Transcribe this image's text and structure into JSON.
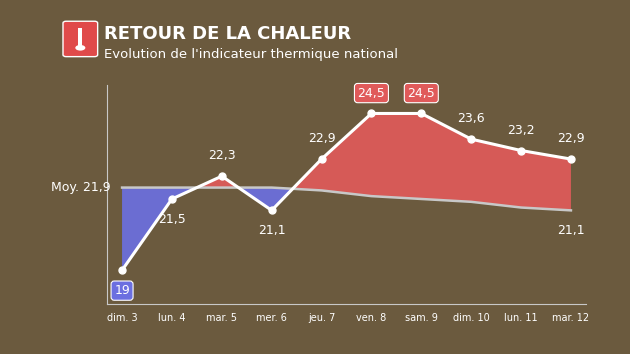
{
  "chart_data": {
    "type": "line",
    "title": "RETOUR DE LA CHALEUR",
    "subtitle": "Evolution de l'indicateur thermique national",
    "categories": [
      "dim. 3",
      "lun. 4",
      "mar. 5",
      "mer. 6",
      "jeu. 7",
      "ven. 8",
      "sam. 9",
      "dim. 10",
      "lun. 11",
      "mar. 12"
    ],
    "values": [
      19,
      21.5,
      22.3,
      21.1,
      22.9,
      24.5,
      24.5,
      23.6,
      23.2,
      22.9
    ],
    "value_labels": [
      "19",
      "21,5",
      "22,3",
      "21,1",
      "22,9",
      "24,5",
      "24,5",
      "23,6",
      "23,2",
      "22,9"
    ],
    "normal": {
      "values": [
        21.9,
        21.9,
        21.9,
        21.9,
        21.8,
        21.6,
        21.5,
        21.4,
        21.2,
        21.1
      ],
      "value_labels": [
        "Moy. 21,9",
        null,
        null,
        null,
        null,
        null,
        null,
        null,
        null,
        "21,1"
      ]
    },
    "ylim": [
      17.8,
      25.5
    ],
    "yticks": [],
    "grid": false,
    "data_labels": true,
    "tick_labels": "x"
  }
}
